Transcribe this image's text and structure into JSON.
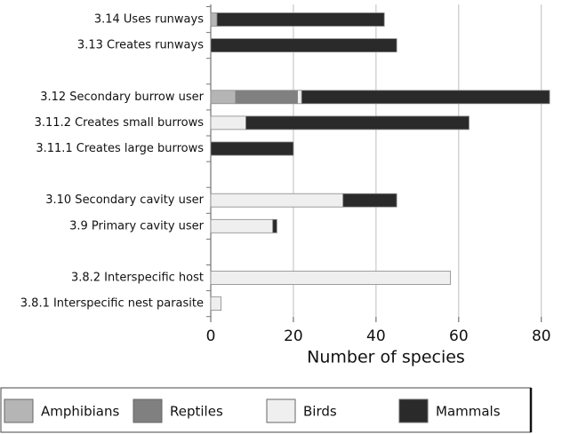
{
  "chart_data": {
    "type": "stacked-barh",
    "categories": [
      "3.14 Uses runways",
      "3.13 Creates runways",
      null,
      "3.12 Secondary burrow user",
      "3.11.2 Creates small burrows",
      "3.11.1 Creates large burrows",
      null,
      "3.10 Secondary cavity user",
      "3.9 Primary cavity user",
      null,
      "3.8.2 Interspecific host",
      "3.8.1 Interspecific nest parasite"
    ],
    "series": [
      {
        "name": "Amphibians",
        "color": "#b5b5b5",
        "values": [
          1.5,
          null,
          null,
          6,
          null,
          null,
          null,
          null,
          null,
          null,
          null,
          null
        ]
      },
      {
        "name": "Reptiles",
        "color": "#808080",
        "values": [
          null,
          null,
          null,
          15,
          null,
          null,
          null,
          null,
          null,
          null,
          null,
          null
        ]
      },
      {
        "name": "Birds",
        "color": "#efefef",
        "values": [
          null,
          null,
          null,
          1,
          8.5,
          null,
          null,
          32,
          15,
          null,
          58,
          2.5
        ]
      },
      {
        "name": "Mammals",
        "color": "#2a2a2a",
        "values": [
          40.5,
          45,
          null,
          60,
          54,
          20,
          null,
          13,
          1,
          null,
          null,
          null
        ]
      }
    ],
    "xlabel": "Number of species",
    "xlim": [
      0,
      85
    ],
    "xticks": [
      0,
      20,
      40,
      60,
      80
    ],
    "grid": true
  }
}
